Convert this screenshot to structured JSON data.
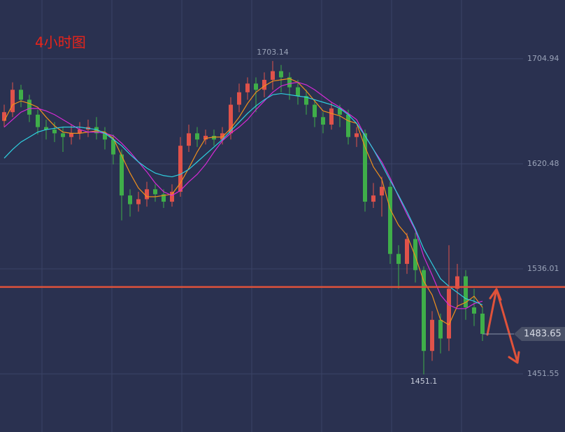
{
  "chart_data": {
    "type": "candlestick",
    "title": "4小时图",
    "ylim": [
      1404.8,
      1752.2
    ],
    "yticks": [
      1451.55,
      1536.01,
      1620.48,
      1704.94
    ],
    "grid": true,
    "up_color": "#e0524a",
    "down_color": "#3fae49",
    "hline": 1521.4,
    "hline_color": "#e0523a",
    "open": [
      1655,
      1662,
      1680,
      1672,
      1660,
      1650,
      1648,
      1645,
      1642,
      1645,
      1648,
      1650,
      1645,
      1640,
      1628,
      1595,
      1588,
      1592,
      1600,
      1596,
      1590,
      1598,
      1635,
      1645,
      1640,
      1643,
      1640,
      1645,
      1668,
      1678,
      1685,
      1680,
      1688,
      1695,
      1690,
      1682,
      1675,
      1668,
      1658,
      1652,
      1665,
      1660,
      1642,
      1645,
      1590,
      1595,
      1602,
      1548,
      1540,
      1560,
      1535,
      1470,
      1495,
      1480,
      1520,
      1530,
      1505,
      1500
    ],
    "high": [
      1668,
      1686,
      1684,
      1676,
      1664,
      1656,
      1654,
      1650,
      1652,
      1654,
      1656,
      1658,
      1650,
      1644,
      1632,
      1600,
      1598,
      1606,
      1604,
      1600,
      1604,
      1642,
      1652,
      1650,
      1648,
      1648,
      1650,
      1674,
      1685,
      1690,
      1690,
      1694,
      1703.14,
      1700,
      1694,
      1688,
      1680,
      1672,
      1662,
      1670,
      1668,
      1664,
      1650,
      1648,
      1605,
      1610,
      1606,
      1555,
      1565,
      1565,
      1538,
      1502,
      1500,
      1555,
      1540,
      1535,
      1520,
      1505
    ],
    "low": [
      1650,
      1658,
      1666,
      1654,
      1644,
      1640,
      1638,
      1630,
      1636,
      1640,
      1642,
      1640,
      1632,
      1620,
      1575,
      1578,
      1582,
      1586,
      1590,
      1585,
      1586,
      1594,
      1630,
      1634,
      1636,
      1635,
      1636,
      1640,
      1662,
      1672,
      1662,
      1674,
      1680,
      1678,
      1672,
      1668,
      1660,
      1650,
      1645,
      1648,
      1650,
      1636,
      1634,
      1582,
      1585,
      1578,
      1540,
      1520,
      1532,
      1525,
      1451.1,
      1462,
      1468,
      1470,
      1505,
      1495,
      1490,
      1478
    ],
    "close": [
      1662,
      1680,
      1672,
      1660,
      1650,
      1648,
      1645,
      1642,
      1645,
      1648,
      1650,
      1645,
      1640,
      1628,
      1595,
      1588,
      1592,
      1600,
      1596,
      1590,
      1598,
      1635,
      1645,
      1640,
      1643,
      1640,
      1645,
      1668,
      1678,
      1685,
      1680,
      1688,
      1695,
      1690,
      1682,
      1675,
      1668,
      1658,
      1652,
      1665,
      1660,
      1642,
      1645,
      1590,
      1595,
      1602,
      1548,
      1540,
      1560,
      1535,
      1470,
      1495,
      1480,
      1520,
      1530,
      1505,
      1500,
      1483.65
    ],
    "series": [
      {
        "color": "#f0901c",
        "values": [
          1655,
          1668,
          1671,
          1669,
          1666,
          1658,
          1651,
          1646,
          1645,
          1645,
          1646,
          1647,
          1646,
          1641,
          1627,
          1613,
          1601,
          1594,
          1594,
          1595,
          1596,
          1605,
          1617,
          1630,
          1641,
          1642,
          1642,
          1649,
          1658,
          1669,
          1678,
          1683,
          1687,
          1688,
          1689,
          1686,
          1679,
          1671,
          1663,
          1661,
          1659,
          1655,
          1653,
          1634,
          1618,
          1608,
          1584,
          1571,
          1563,
          1546,
          1526,
          1515,
          1495,
          1491,
          1506,
          1509,
          1514,
          1505
        ]
      },
      {
        "color": "#d62ad6",
        "values": [
          1650,
          1656,
          1662,
          1665,
          1665,
          1663,
          1660,
          1656,
          1652,
          1648,
          1646,
          1646,
          1645,
          1643,
          1637,
          1630,
          1622,
          1614,
          1605,
          1598,
          1595,
          1599,
          1606,
          1612,
          1620,
          1630,
          1639,
          1645,
          1650,
          1656,
          1664,
          1671,
          1678,
          1683,
          1685,
          1686,
          1684,
          1680,
          1675,
          1670,
          1666,
          1661,
          1656,
          1643,
          1632,
          1622,
          1609,
          1594,
          1580,
          1567,
          1546,
          1531,
          1515,
          1507,
          1504,
          1504,
          1508,
          1510
        ]
      },
      {
        "color": "#2fd0e0",
        "values": [
          1625,
          1632,
          1638,
          1642,
          1646,
          1648,
          1649,
          1650,
          1650,
          1650,
          1649,
          1648,
          1645,
          1640,
          1635,
          1628,
          1622,
          1617,
          1613,
          1611,
          1610,
          1612,
          1616,
          1622,
          1628,
          1634,
          1640,
          1647,
          1654,
          1661,
          1667,
          1672,
          1676,
          1677,
          1676,
          1675,
          1674,
          1672,
          1670,
          1668,
          1665,
          1660,
          1653,
          1643,
          1632,
          1620,
          1607,
          1595,
          1582,
          1568,
          1552,
          1540,
          1528,
          1522,
          1517,
          1512,
          1510,
          1507
        ]
      }
    ]
  }
}
